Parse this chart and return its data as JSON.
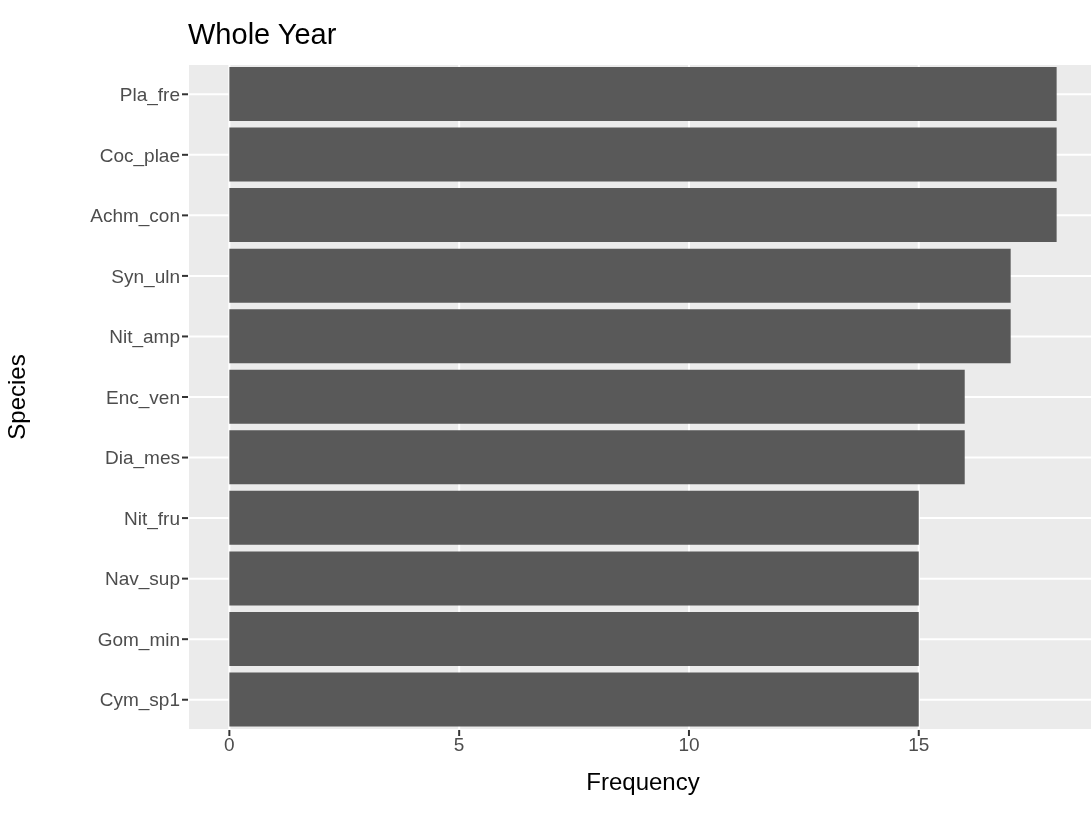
{
  "chart_data": {
    "type": "bar",
    "orientation": "horizontal",
    "title": "Whole Year",
    "xlabel": "Frequency",
    "ylabel": "Species",
    "categories": [
      "Pla_fre",
      "Coc_plae",
      "Achm_con",
      "Syn_uln",
      "Nit_amp",
      "Enc_ven",
      "Dia_mes",
      "Nit_fru",
      "Nav_sup",
      "Gom_min",
      "Cym_sp1"
    ],
    "values": [
      18,
      18,
      18,
      17,
      17,
      16,
      16,
      15,
      15,
      15,
      15
    ],
    "color": "#595959",
    "xlim": [
      -0.9,
      18.9
    ],
    "xticks": [
      0,
      5,
      10,
      15
    ],
    "grid": true
  }
}
